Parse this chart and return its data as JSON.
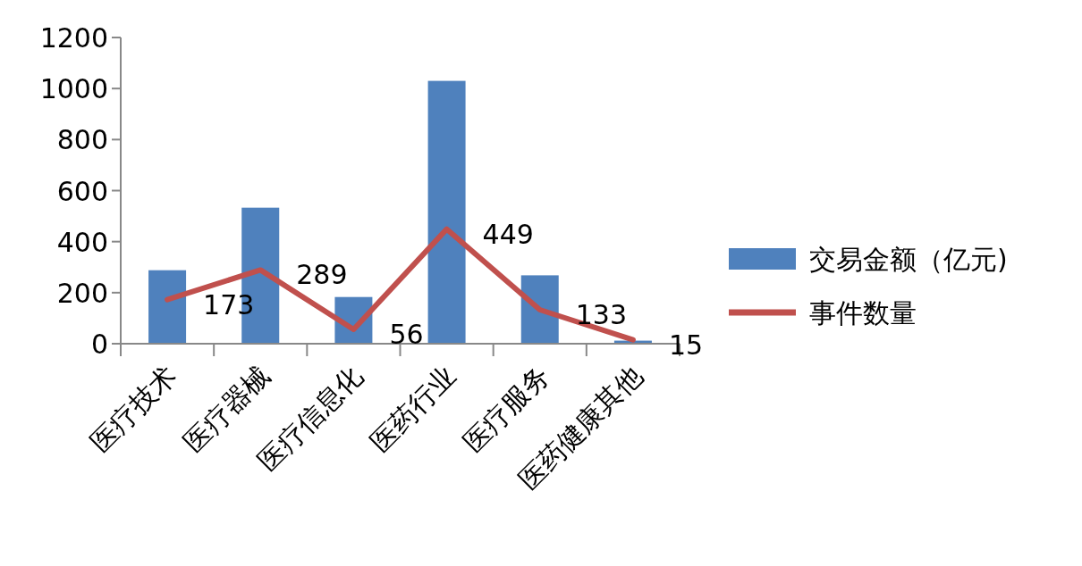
{
  "chart_data": {
    "type": "bar",
    "categories": [
      "医疗技术",
      "医疗器械",
      "医疗信息化",
      "医药行业",
      "医疗服务",
      "医药健康其他"
    ],
    "series": [
      {
        "name": "交易金额（亿元)",
        "color": "#4f81bd",
        "values": [
          288,
          533,
          183,
          1030,
          268,
          12
        ]
      },
      {
        "name": "事件数量",
        "type": "line",
        "color": "#c0504d",
        "values": [
          173,
          289,
          56,
          449,
          133,
          15
        ],
        "value_labels": [
          "173",
          "289",
          "56",
          "449",
          "133",
          "15"
        ]
      }
    ],
    "ylim": [
      0,
      1200
    ],
    "yticks": [
      0,
      200,
      400,
      600,
      800,
      1000,
      1200
    ],
    "grid": false,
    "legend": "right",
    "marker": "none",
    "line_style": "solid"
  }
}
